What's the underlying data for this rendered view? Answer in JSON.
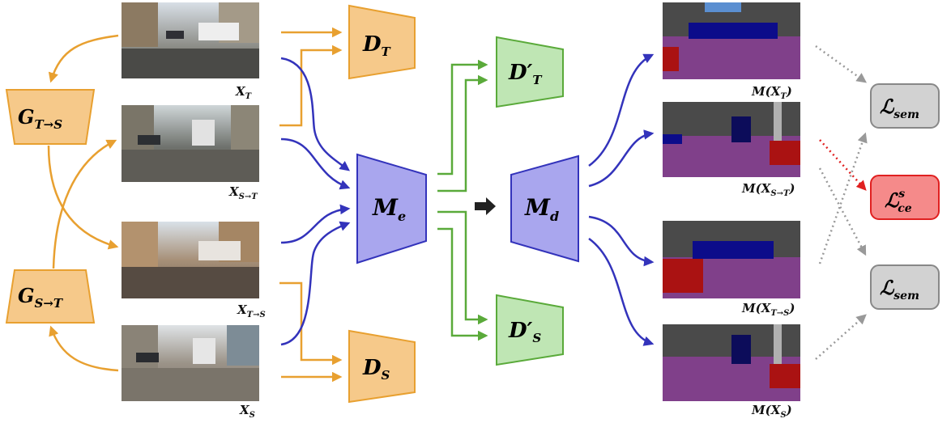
{
  "colors": {
    "orange_stroke": "#E8A030",
    "orange_fill": "#F6C98A",
    "blue_stroke": "#3333BB",
    "blue_fill": "#A9A6EE",
    "green_stroke": "#5AAA3A",
    "green_fill": "#BFE6B4",
    "gray_fill": "#D2D2D2",
    "red_fill": "#F58A8A",
    "red_stroke": "#E02020"
  },
  "images": {
    "x_t": {
      "label": "X",
      "sub": "T"
    },
    "x_s2t": {
      "label": "X",
      "sub": "S→T"
    },
    "x_t2s": {
      "label": "X",
      "sub": "T→S"
    },
    "x_s": {
      "label": "X",
      "sub": "S"
    }
  },
  "segmaps": {
    "m_xt": {
      "pre": "M(X",
      "sub": "T",
      "post": ")"
    },
    "m_xs2t": {
      "pre": "M(X",
      "sub": "S→T",
      "post": ")"
    },
    "m_xt2s": {
      "pre": "M(X",
      "sub": "T→S",
      "post": ")"
    },
    "m_xs": {
      "pre": "M(X",
      "sub": "S",
      "post": ")"
    }
  },
  "generators": {
    "g_t2s": {
      "label": "G",
      "sub": "T→S"
    },
    "g_s2t": {
      "label": "G",
      "sub": "S→T"
    }
  },
  "discriminators": {
    "d_t": {
      "label": "D",
      "sub": "T"
    },
    "d_s": {
      "label": "D",
      "sub": "S"
    },
    "d_t_prime": {
      "label": "D′",
      "sub": "T"
    },
    "d_s_prime": {
      "label": "D′",
      "sub": "S"
    }
  },
  "encoder": {
    "label": "M",
    "sub": "e"
  },
  "decoder": {
    "label": "M",
    "sub": "d"
  },
  "losses": {
    "sem_top": {
      "label": "ℒ",
      "sub": "sem"
    },
    "ce": {
      "label": "ℒ",
      "sub": "ce",
      "sup": "s"
    },
    "sem_bottom": {
      "label": "ℒ",
      "sub": "sem"
    }
  }
}
